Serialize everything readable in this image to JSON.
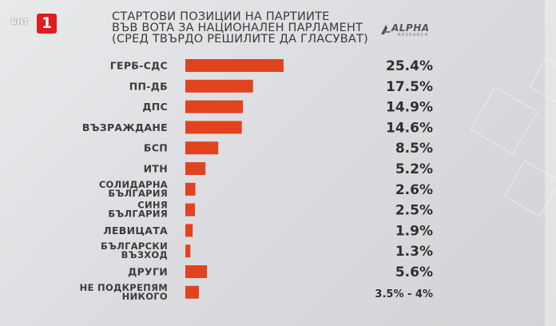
{
  "broadcaster": {
    "channel_text": "БНТ",
    "channel_number": "1"
  },
  "header": {
    "title_lines": [
      "СТАРТОВИ ПОЗИЦИИ НА ПАРТИИТЕ",
      "ВЪВ ВОТА ЗА НАЦИОНАЛЕН ПАРЛАМЕНТ",
      "(СРЕД ТВЪРДО РЕШИЛИТЕ ДА ГЛАСУВАТ)"
    ],
    "source_logo": "ALPHA",
    "source_logo_sub": "RESEARCH"
  },
  "colors": {
    "bar": "#e2431f",
    "label": "#3b3b3b",
    "value": "#2f2f2f",
    "brand_red": "#e21b1b"
  },
  "chart_data": {
    "type": "bar",
    "orientation": "horizontal",
    "title": "СТАРТОВИ ПОЗИЦИИ НА ПАРТИИТЕ ВЪВ ВОТА ЗА НАЦИОНАЛЕН ПАРЛАМЕНТ (СРЕД ТВЪРДО РЕШИЛИТЕ ДА ГЛАСУВАТ)",
    "unit": "%",
    "categories": [
      [
        "ГЕРБ-СДС"
      ],
      [
        "ПП-ДБ"
      ],
      [
        "ДПС"
      ],
      [
        "ВЪЗРАЖДАНЕ"
      ],
      [
        "БСП"
      ],
      [
        "ИТН"
      ],
      [
        "СОЛИДАРНА",
        "БЪЛГАРИЯ"
      ],
      [
        "СИНЯ",
        "БЪЛГАРИЯ"
      ],
      [
        "ЛЕВИЦАТА"
      ],
      [
        "БЪЛГАРСКИ",
        "ВЪЗХОД"
      ],
      [
        "ДРУГИ"
      ],
      [
        "НЕ ПОДКРЕПЯМ",
        "НИКОГО"
      ]
    ],
    "values": [
      25.4,
      17.5,
      14.9,
      14.6,
      8.5,
      5.2,
      2.6,
      2.5,
      1.9,
      1.3,
      5.6,
      3.5
    ],
    "value_labels": [
      "25.4%",
      "17.5%",
      "14.9%",
      "14.6%",
      "8.5%",
      "5.2%",
      "2.6%",
      "2.5%",
      "1.9%",
      "1.3%",
      "5.6%",
      "3.5% - 4%"
    ],
    "xlim": [
      0,
      26
    ],
    "grid": false,
    "legend": "none"
  }
}
